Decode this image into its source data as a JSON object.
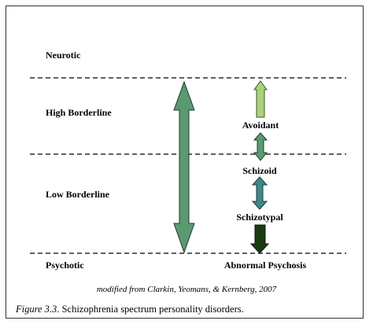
{
  "levels": {
    "neurotic": "Neurotic",
    "high_borderline": "High Borderline",
    "low_borderline": "Low Borderline",
    "psychotic": "Psychotic"
  },
  "disorders": {
    "avoidant": "Avoidant",
    "schizoid": "Schizoid",
    "schizotypal": "Schizotypal",
    "abnormal_psychosis": "Abnormal Psychosis"
  },
  "source_note": "modified from Clarkin, Yeomans, & Kernberg, 2007",
  "caption": {
    "label": "Figure 3.3",
    "text": ". Schizophrenia spectrum personality disorders."
  },
  "colors": {
    "main_arrow": "#5a9a72",
    "avoidant_arrow": "#aad27a",
    "avoidant_schizoid_arrow": "#5a9a72",
    "schizoid_schizotypal_arrow": "#3d8a8a",
    "schizotypal_arrow": "#1a3a14"
  }
}
